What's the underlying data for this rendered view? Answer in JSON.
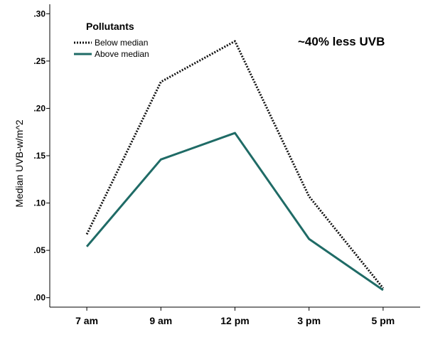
{
  "chart_data": {
    "type": "line",
    "categories": [
      "7 am",
      "9 am",
      "12 pm",
      "3 pm",
      "5 pm"
    ],
    "series": [
      {
        "name": "Below median",
        "values": [
          0.067,
          0.228,
          0.271,
          0.107,
          0.01
        ],
        "color": "#111111",
        "style": "dotted"
      },
      {
        "name": "Above median",
        "values": [
          0.054,
          0.146,
          0.174,
          0.062,
          0.008
        ],
        "color": "#1f6b66",
        "style": "solid"
      }
    ],
    "ylabel": "Median UVB-w/m^2",
    "xlabel": "",
    "yticks": [
      0.0,
      0.05,
      0.1,
      0.15,
      0.2,
      0.25,
      0.3
    ],
    "ytick_labels": [
      ".00",
      ".05",
      ".10",
      ".15",
      ".20",
      ".25",
      ".30"
    ],
    "ylim": [
      -0.01,
      0.31
    ],
    "legend": {
      "title": "Pollutants",
      "placement": "top-left"
    },
    "annotation": {
      "text": "~40% less UVB",
      "color": "#e2336b"
    },
    "grid": false
  }
}
